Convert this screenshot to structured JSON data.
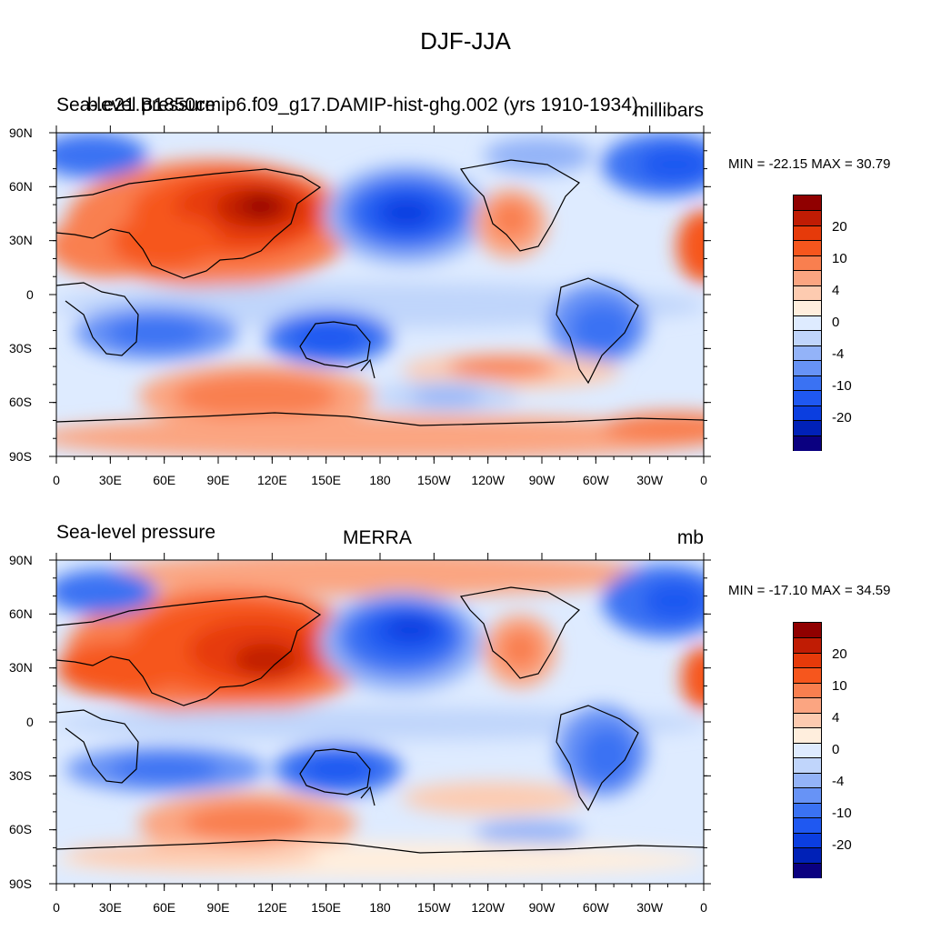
{
  "page_title": "DJF-JJA",
  "palette": [
    "#0a0080",
    "#0021b7",
    "#0b3ee0",
    "#1f58f1",
    "#3a72f3",
    "#6793f6",
    "#93b3f8",
    "#c0d5fb",
    "#deebff",
    "#ffeedd",
    "#fdcbb0",
    "#fba581",
    "#f97f4f",
    "#f6561d",
    "#e63a0a",
    "#c01c04",
    "#900000"
  ],
  "land_color": "#ffffff",
  "panels": [
    {
      "left_title": "Sea-level pressure",
      "center_title": "b.e21.B1850cmip6.f09_g17.DAMIP-hist-ghg.002 (yrs 1910-1934)",
      "right_title": "millibars",
      "stats": "MIN = -22.15 MAX =  30.79",
      "colorbar_labels": [
        "20",
        "10",
        "4",
        "0",
        "-4",
        "-10",
        "-20"
      ],
      "lat_ticks": [
        "90N",
        "60N",
        "30N",
        "0",
        "30S",
        "60S",
        "90S"
      ],
      "lon_ticks": [
        "0",
        "30E",
        "60E",
        "90E",
        "120E",
        "150E",
        "180",
        "150W",
        "120W",
        "90W",
        "60W",
        "30W",
        "0"
      ]
    },
    {
      "left_title": "Sea-level pressure",
      "center_title": "MERRA",
      "right_title": "mb",
      "stats": "MIN = -17.10 MAX =  34.59",
      "colorbar_labels": [
        "20",
        "10",
        "4",
        "0",
        "-4",
        "-10",
        "-20"
      ],
      "lat_ticks": [
        "90N",
        "60N",
        "30N",
        "0",
        "30S",
        "60S",
        "90S"
      ],
      "lon_ticks": [
        "0",
        "30E",
        "60E",
        "90E",
        "120E",
        "150E",
        "180",
        "150W",
        "120W",
        "90W",
        "60W",
        "30W",
        "0"
      ]
    }
  ]
}
